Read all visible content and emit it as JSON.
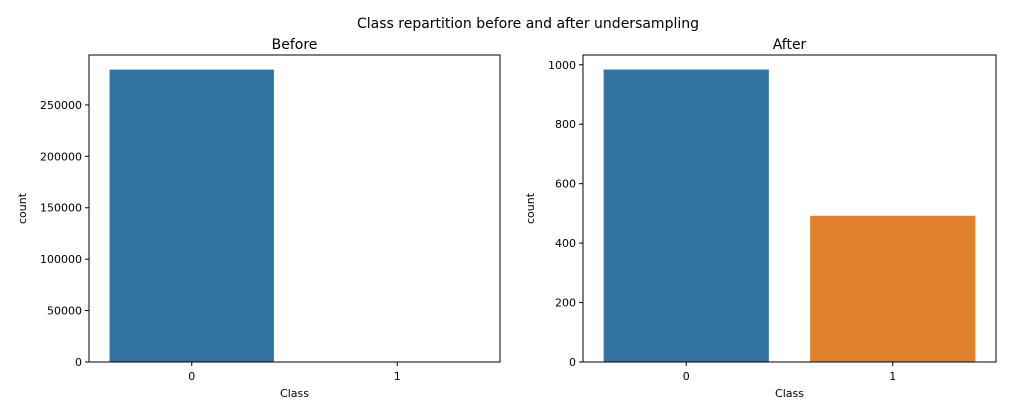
{
  "figure": {
    "suptitle": "Class repartition before and after undersampling"
  },
  "colors": {
    "class_0": "#3274a1",
    "class_1": "#e1812c",
    "axes": "#000000",
    "background": "#ffffff"
  },
  "chart_data": [
    {
      "type": "bar",
      "title": "Before",
      "xlabel": "Class",
      "ylabel": "count",
      "categories": [
        "0",
        "1"
      ],
      "values": [
        284315,
        492
      ],
      "ylim": [
        0,
        298531
      ],
      "yticks": [
        0,
        50000,
        100000,
        150000,
        200000,
        250000
      ],
      "ytick_labels": [
        "0",
        "50000",
        "100000",
        "150000",
        "200000",
        "250000"
      ],
      "bar_colors": [
        "#3274a1",
        "#e1812c"
      ],
      "grid": false
    },
    {
      "type": "bar",
      "title": "After",
      "xlabel": "Class",
      "ylabel": "count",
      "categories": [
        "0",
        "1"
      ],
      "values": [
        984,
        492
      ],
      "ylim": [
        0,
        1033
      ],
      "yticks": [
        0,
        200,
        400,
        600,
        800,
        1000
      ],
      "ytick_labels": [
        "0",
        "200",
        "400",
        "600",
        "800",
        "1000"
      ],
      "bar_colors": [
        "#3274a1",
        "#e1812c"
      ],
      "grid": false
    }
  ]
}
